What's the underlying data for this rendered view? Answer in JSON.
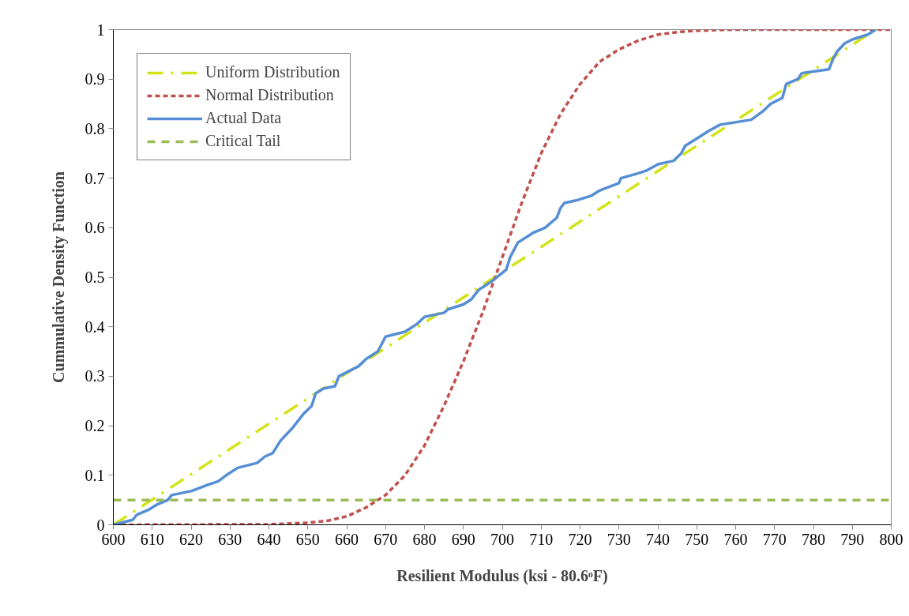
{
  "chart_data": {
    "type": "line",
    "xlabel": "Resilient Modulus (ksi - 80.6ᵒF)",
    "ylabel": "Cummulative Density Function",
    "xlim": [
      600,
      800
    ],
    "xticks": [
      600,
      610,
      620,
      630,
      640,
      650,
      660,
      670,
      680,
      690,
      700,
      710,
      720,
      730,
      740,
      750,
      760,
      770,
      780,
      790,
      800
    ],
    "ylim": [
      0,
      1
    ],
    "yticks": [
      0,
      0.1,
      0.2,
      0.3,
      0.4,
      0.5,
      0.6,
      0.7,
      0.8,
      0.9,
      1
    ],
    "grid": false,
    "legend": "top left",
    "marker": "none",
    "series": [
      {
        "name": "Uniform Distribution",
        "color": "#d4e317",
        "line_style": "dashdot",
        "x": [
          600,
          796
        ],
        "values": [
          0,
          1
        ]
      },
      {
        "name": "Normal Distribution",
        "color": "#c0504d",
        "line_style": "dotted",
        "x": [
          600,
          640,
          650,
          655,
          660,
          665,
          670,
          675,
          680,
          685,
          690,
          695,
          700,
          705,
          710,
          715,
          720,
          725,
          730,
          735,
          740,
          745,
          750,
          760,
          800
        ],
        "values": [
          0,
          0.001,
          0.004,
          0.008,
          0.017,
          0.035,
          0.06,
          0.1,
          0.16,
          0.24,
          0.33,
          0.43,
          0.54,
          0.65,
          0.75,
          0.83,
          0.89,
          0.935,
          0.96,
          0.978,
          0.99,
          0.995,
          0.998,
          1,
          1
        ]
      },
      {
        "name": "Actual Data",
        "color": "#558ed5",
        "line_style": "solid",
        "x": [
          600,
          605,
          606,
          609,
          611,
          614,
          615,
          620,
          624,
          627,
          629,
          632,
          637,
          639,
          641,
          643,
          646,
          649,
          651,
          652,
          654,
          657,
          658,
          663,
          665,
          668,
          670,
          675,
          678,
          680,
          685,
          686,
          690,
          692,
          694,
          697,
          701,
          702,
          704,
          707,
          708,
          711,
          714,
          715,
          716,
          719,
          723,
          725,
          730,
          730.5,
          735,
          737,
          740,
          744,
          746,
          747,
          749,
          750,
          753,
          756,
          764,
          767,
          769,
          772,
          773,
          776,
          777,
          784,
          785,
          786,
          788,
          790,
          794,
          796
        ],
        "values": [
          0,
          0.01,
          0.02,
          0.03,
          0.04,
          0.05,
          0.06,
          0.068,
          0.08,
          0.088,
          0.1,
          0.115,
          0.125,
          0.138,
          0.145,
          0.17,
          0.195,
          0.225,
          0.24,
          0.265,
          0.275,
          0.28,
          0.3,
          0.32,
          0.335,
          0.35,
          0.38,
          0.39,
          0.405,
          0.42,
          0.428,
          0.435,
          0.445,
          0.455,
          0.475,
          0.49,
          0.515,
          0.54,
          0.57,
          0.585,
          0.59,
          0.6,
          0.62,
          0.64,
          0.65,
          0.655,
          0.665,
          0.675,
          0.69,
          0.7,
          0.71,
          0.715,
          0.728,
          0.735,
          0.75,
          0.765,
          0.775,
          0.78,
          0.795,
          0.808,
          0.818,
          0.835,
          0.85,
          0.862,
          0.89,
          0.9,
          0.912,
          0.92,
          0.94,
          0.955,
          0.972,
          0.98,
          0.99,
          1
        ]
      },
      {
        "name": "Critical Tail",
        "color": "#9bbb59",
        "line_style": "dashed",
        "x": [
          600,
          800
        ],
        "values": [
          0.05,
          0.05
        ]
      }
    ]
  }
}
